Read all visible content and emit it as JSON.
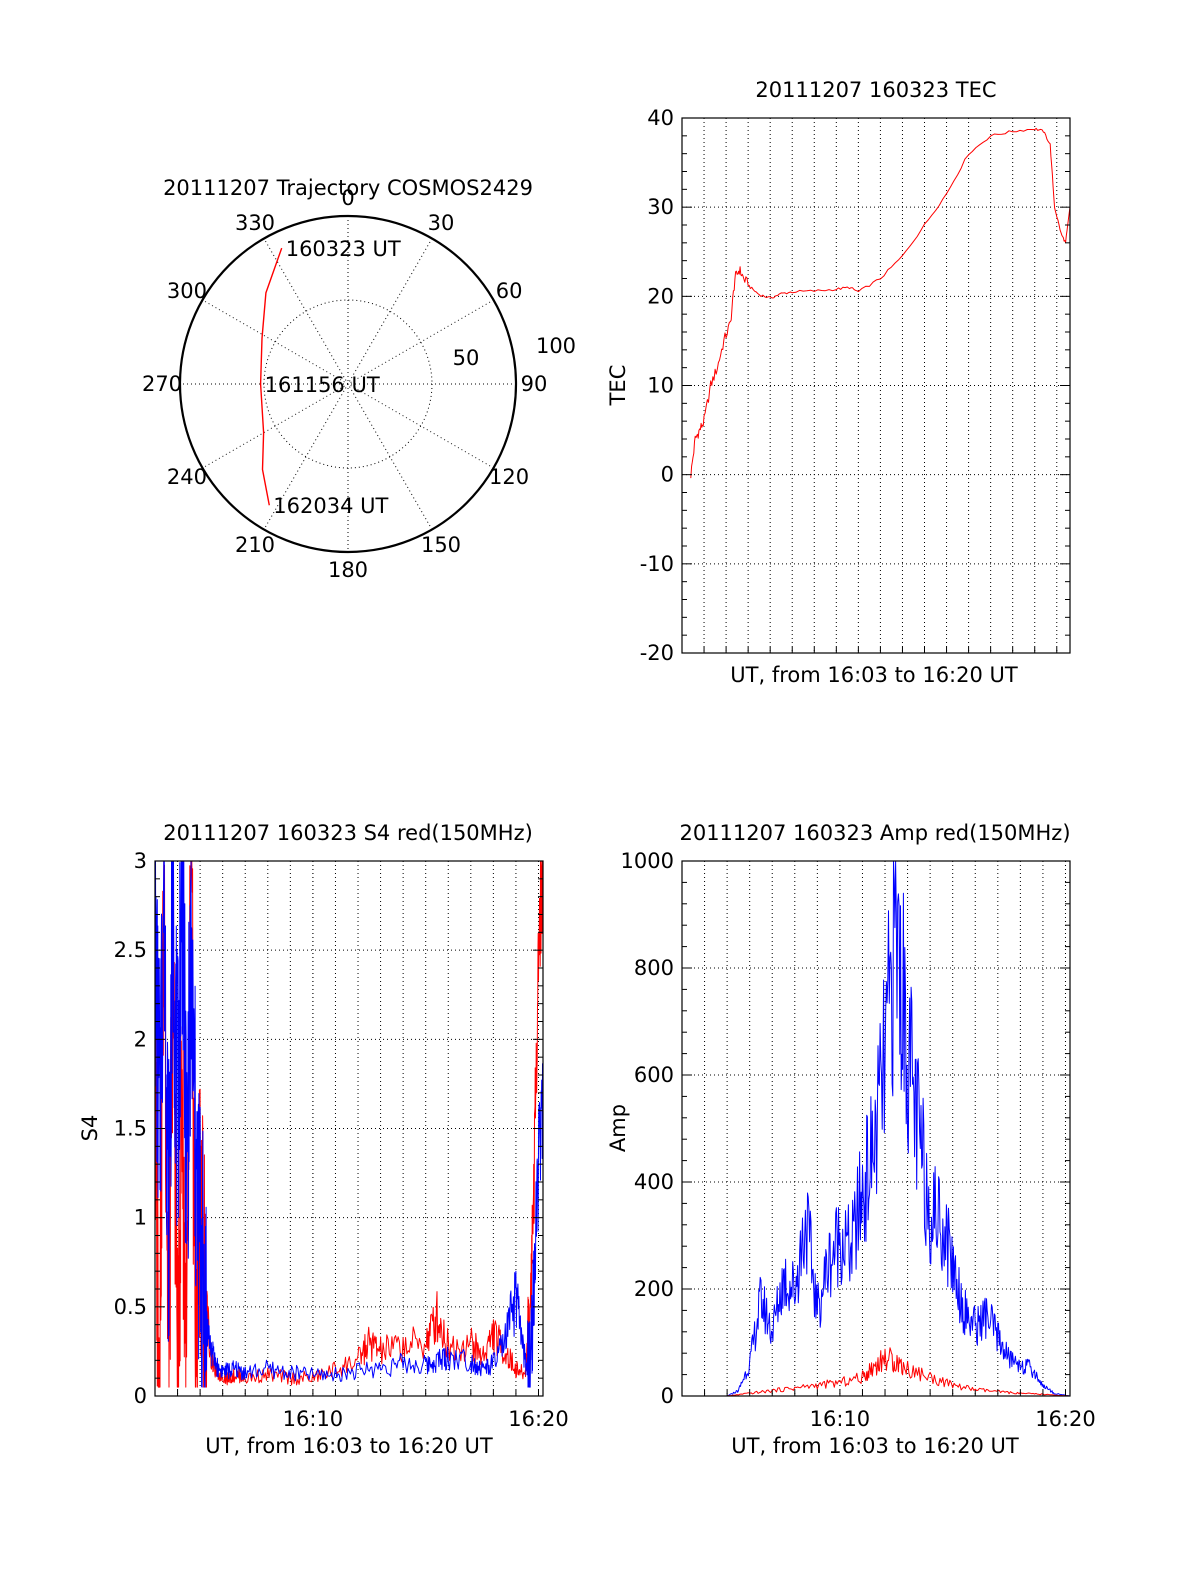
{
  "chart_data": [
    {
      "type": "polar",
      "title": "20111207 Trajectory COSMOS2429",
      "azimuth_labels": [
        "0",
        "30",
        "60",
        "90",
        "120",
        "150",
        "180",
        "210",
        "240",
        "270",
        "300",
        "330"
      ],
      "radial_labels": [
        "50",
        "100"
      ],
      "rlim": [
        0,
        100
      ],
      "colors": {
        "trajectory": "#ff0000"
      },
      "series": [
        {
          "azimuth_deg": [
            334,
            318,
            298,
            270,
            240,
            225,
            213
          ],
          "radius": [
            90,
            73,
            58,
            52,
            58,
            72,
            86
          ]
        }
      ],
      "annotations": [
        {
          "text": "160323 UT",
          "azimuth_deg": 334,
          "radius": 90
        },
        {
          "text": "161156 UT",
          "azimuth_deg": 270,
          "radius": 52
        },
        {
          "text": "162034 UT",
          "azimuth_deg": 213,
          "radius": 86
        }
      ]
    },
    {
      "type": "line",
      "title": "20111207 160323 TEC",
      "xlabel": "UT, from 16:03 to 16:20 UT",
      "ylabel": "TEC",
      "xlim": [
        3.0,
        20.6
      ],
      "ylim": [
        -20,
        40
      ],
      "yticks": [
        "-20",
        "-10",
        "0",
        "10",
        "20",
        "30",
        "40"
      ],
      "grid": true,
      "colors": {
        "tec": "#ff0000"
      },
      "series": [
        {
          "x": [
            3.4,
            3.6,
            3.8,
            4.0,
            4.3,
            4.6,
            4.9,
            5.2,
            5.4,
            5.6,
            5.8,
            6.1,
            6.5,
            7.0,
            7.5,
            8.0,
            9.0,
            10.0,
            10.6,
            11.0,
            12.0,
            13.0,
            14.0,
            15.0,
            16.0,
            17.0,
            18.0,
            19.0,
            19.4,
            19.7,
            19.9,
            20.2,
            20.4,
            20.6
          ],
          "y": [
            0,
            4,
            5,
            6,
            10,
            12,
            15,
            17,
            22,
            23,
            22,
            21,
            20.2,
            19.8,
            20.3,
            20.5,
            20.6,
            20.8,
            21,
            20.5,
            22,
            24.5,
            28,
            31.5,
            36,
            38,
            38.5,
            38.8,
            38.5,
            37,
            30,
            27,
            26,
            30
          ]
        }
      ]
    },
    {
      "type": "line",
      "title": "20111207 160323 S4 red(150MHz)",
      "xlabel": "UT, from 16:03 to 16:20 UT",
      "ylabel": "S4",
      "xlim": [
        3.0,
        20.2
      ],
      "ylim": [
        0,
        3
      ],
      "xticks": [
        "16:10",
        "16:20"
      ],
      "yticks": [
        "0",
        "0.5",
        "1",
        "1.5",
        "2",
        "2.5",
        "3"
      ],
      "grid": true,
      "colors": {
        "red_channel": "#ff0000",
        "blue_channel": "#0000ff"
      },
      "series": [
        {
          "x": [
            3.0,
            3.2,
            3.4,
            3.6,
            3.8,
            4.0,
            4.2,
            4.4,
            4.6,
            4.8,
            5.0,
            5.2,
            5.5,
            5.8,
            6.2,
            6.6,
            7.0,
            8.0,
            9.0,
            10.0,
            11.0,
            12.0,
            12.5,
            13.0,
            14.0,
            15.0,
            15.5,
            16.0,
            17.0,
            17.5,
            18.0,
            18.5,
            19.0,
            19.4,
            19.6,
            19.8,
            20.0,
            20.2
          ],
          "y": [
            1.5,
            0.2,
            3.0,
            0.0,
            2.6,
            0.1,
            1.8,
            0.0,
            3.0,
            0.2,
            1.2,
            0.6,
            0.2,
            0.12,
            0.1,
            0.12,
            0.1,
            0.12,
            0.1,
            0.1,
            0.15,
            0.2,
            0.3,
            0.25,
            0.28,
            0.3,
            0.45,
            0.28,
            0.3,
            0.22,
            0.35,
            0.25,
            0.15,
            0.12,
            0.4,
            1.2,
            2.5,
            3.0
          ]
        },
        {
          "x": [
            3.0,
            3.2,
            3.4,
            3.6,
            3.8,
            4.0,
            4.2,
            4.4,
            4.6,
            4.8,
            5.0,
            5.2,
            5.5,
            5.8,
            6.2,
            6.6,
            7.0,
            8.0,
            9.0,
            10.0,
            11.0,
            12.0,
            13.0,
            14.0,
            15.0,
            15.5,
            16.0,
            17.0,
            17.5,
            18.0,
            18.5,
            19.0,
            19.4,
            19.6,
            19.8,
            20.0,
            20.2
          ],
          "y": [
            2.5,
            1.5,
            3.0,
            1.0,
            2.8,
            1.5,
            3.0,
            1.2,
            2.4,
            1.3,
            0.9,
            0.5,
            0.25,
            0.15,
            0.14,
            0.15,
            0.13,
            0.15,
            0.13,
            0.12,
            0.12,
            0.14,
            0.16,
            0.18,
            0.17,
            0.2,
            0.22,
            0.2,
            0.15,
            0.18,
            0.3,
            0.55,
            0.2,
            0.12,
            0.6,
            1.3,
            1.6
          ]
        }
      ]
    },
    {
      "type": "line",
      "title": "20111207 160323 Amp red(150MHz)",
      "xlabel": "UT, from 16:03 to 16:20 UT",
      "ylabel": "Amp",
      "xlim": [
        3.0,
        20.2
      ],
      "ylim": [
        0,
        1000
      ],
      "xticks": [
        "16:10",
        "16:20"
      ],
      "yticks": [
        "0",
        "200",
        "400",
        "600",
        "800",
        "1000"
      ],
      "grid": true,
      "colors": {
        "red_channel": "#ff0000",
        "blue_channel": "#0000ff"
      },
      "series": [
        {
          "x": [
            3.0,
            4.0,
            5.0,
            6.0,
            7.0,
            8.0,
            9.0,
            10.0,
            11.0,
            11.5,
            12.0,
            12.5,
            13.0,
            14.0,
            15.0,
            16.0,
            17.0,
            18.0,
            19.0,
            20.2
          ],
          "y": [
            0,
            0,
            0,
            5,
            10,
            15,
            20,
            25,
            35,
            55,
            70,
            65,
            50,
            35,
            20,
            12,
            8,
            5,
            3,
            0
          ]
        },
        {
          "x": [
            3.0,
            4.0,
            5.0,
            5.5,
            6.0,
            6.5,
            7.0,
            7.5,
            8.0,
            8.5,
            9.0,
            9.5,
            10.0,
            10.5,
            11.0,
            11.5,
            12.0,
            12.5,
            13.0,
            13.5,
            14.0,
            14.5,
            15.0,
            15.5,
            16.0,
            16.5,
            17.0,
            17.5,
            18.0,
            18.5,
            19.0,
            19.5,
            20.2
          ],
          "y": [
            0,
            0,
            0,
            10,
            60,
            180,
            120,
            220,
            200,
            330,
            160,
            250,
            300,
            270,
            380,
            460,
            620,
            880,
            650,
            480,
            350,
            330,
            250,
            160,
            130,
            150,
            110,
            70,
            60,
            50,
            20,
            5,
            0
          ]
        }
      ]
    }
  ]
}
